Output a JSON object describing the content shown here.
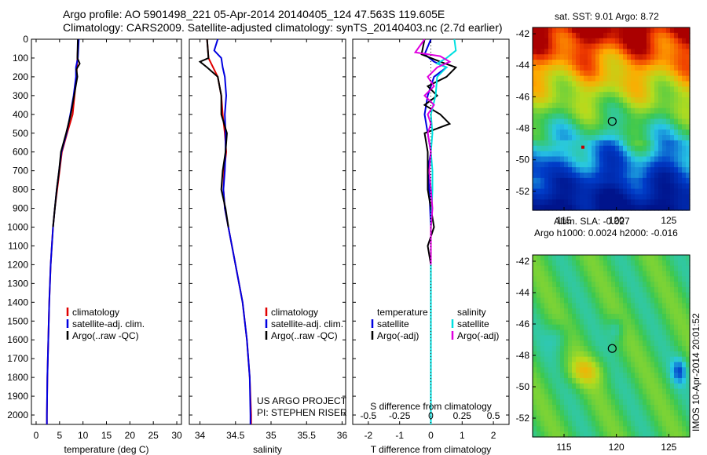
{
  "header": {
    "line1": "Argo profile: AO 5901498_221 05-Apr-2014 20140405_124 47.563S 119.605E",
    "line2": "Climatology: CARS2009. Satellite-adjusted climatology: synTS_20140403.nc (2.7d earlier)"
  },
  "side_label": "IMOS 10-Apr-2014 20:01:52",
  "project_label": [
    "US ARGO PROJECT",
    "PI: STEPHEN RISER"
  ],
  "colors": {
    "climatology": "#e00000",
    "satellite": "#0000e0",
    "argo": "#000000",
    "sat_salinity": "#00e0e0",
    "argo_salinity": "#e000e0"
  },
  "chart_data": [
    {
      "type": "line",
      "xlabel": "temperature (deg C)",
      "ylabel": "",
      "xlim": [
        -1,
        31
      ],
      "ylim": [
        2050,
        0
      ],
      "xticks": [
        0,
        5,
        10,
        15,
        20,
        25,
        30
      ],
      "yticks": [
        0,
        100,
        200,
        300,
        400,
        500,
        600,
        700,
        800,
        900,
        1000,
        1100,
        1200,
        1300,
        1400,
        1500,
        1600,
        1700,
        1800,
        1900,
        2000
      ],
      "legend": [
        "climatology",
        "satellite-adj. clim.",
        "Argo(..raw -QC)"
      ],
      "legend_placement": "lower-center",
      "series": [
        {
          "role": "climatology",
          "depth": [
            0,
            100,
            200,
            300,
            400,
            500,
            600,
            700,
            800,
            900,
            1000,
            1200,
            1400,
            1600,
            1800,
            2000,
            2050
          ],
          "values": [
            9.0,
            8.8,
            8.6,
            8.2,
            7.8,
            6.6,
            5.5,
            5.0,
            4.5,
            4.0,
            3.6,
            3.1,
            2.8,
            2.6,
            2.4,
            2.3,
            2.3
          ]
        },
        {
          "role": "satellite",
          "depth": [
            0,
            100,
            150,
            200,
            300,
            400,
            500,
            600,
            700,
            800,
            900,
            1000,
            1200,
            1400,
            1600,
            1800,
            2000,
            2050
          ],
          "values": [
            9.1,
            8.9,
            8.5,
            8.5,
            8.0,
            7.3,
            6.5,
            5.4,
            4.9,
            4.4,
            4.0,
            3.6,
            3.1,
            2.8,
            2.6,
            2.4,
            2.3,
            2.3
          ]
        },
        {
          "role": "argo",
          "depth": [
            0,
            100,
            130,
            160,
            200,
            300,
            400,
            500,
            600,
            700,
            800,
            900,
            1000
          ],
          "values": [
            8.9,
            8.8,
            9.3,
            8.6,
            8.8,
            8.1,
            7.4,
            6.4,
            5.3,
            4.9,
            4.4,
            4.0,
            3.6
          ]
        }
      ]
    },
    {
      "type": "line",
      "xlabel": "salinity",
      "ylabel": "",
      "xlim": [
        33.85,
        36.05
      ],
      "ylim": [
        2050,
        0
      ],
      "xticks": [
        34,
        34.5,
        35,
        35.5,
        36
      ],
      "legend": [
        "climatology",
        "satellite-adj. clim.",
        "Argo(..raw -QC)"
      ],
      "legend_placement": "lower-right",
      "series": [
        {
          "role": "climatology",
          "depth": [
            0,
            100,
            200,
            300,
            400,
            500,
            600,
            700,
            800,
            900,
            1000,
            1200,
            1400,
            1600,
            1800,
            2000,
            2050
          ],
          "values": [
            34.1,
            34.12,
            34.25,
            34.3,
            34.32,
            34.35,
            34.37,
            34.34,
            34.33,
            34.35,
            34.4,
            34.5,
            34.6,
            34.66,
            34.7,
            34.72,
            34.72
          ]
        },
        {
          "role": "satellite",
          "depth": [
            0,
            60,
            100,
            150,
            200,
            300,
            400,
            500,
            600,
            700,
            800,
            900,
            1000,
            1200,
            1400,
            1600,
            1800,
            2000,
            2050
          ],
          "values": [
            34.25,
            34.2,
            34.3,
            34.32,
            34.35,
            34.37,
            34.35,
            34.36,
            34.36,
            34.35,
            34.33,
            34.35,
            34.4,
            34.5,
            34.6,
            34.66,
            34.7,
            34.71,
            34.71
          ]
        },
        {
          "role": "argo",
          "depth": [
            0,
            100,
            120,
            150,
            200,
            300,
            400,
            500,
            600,
            700,
            800,
            900,
            1000
          ],
          "values": [
            34.1,
            34.12,
            34.0,
            34.1,
            34.25,
            34.3,
            34.3,
            34.38,
            34.36,
            34.32,
            34.3,
            34.36,
            34.4
          ]
        }
      ]
    },
    {
      "type": "line",
      "xlabel": "T difference from climatology",
      "xlabel_top": "S difference from climatology",
      "xlim": [
        -2.5,
        2.5
      ],
      "ylim": [
        2050,
        0
      ],
      "xticks": [
        -2,
        -1,
        0,
        1,
        2
      ],
      "xticks_s": [
        "-0.5",
        "-0.25",
        "0",
        "0.25",
        "0.5"
      ],
      "legend_t_title": "temperature",
      "legend_s_title": "salinity",
      "legend": [
        "satellite",
        "Argo(-adj)",
        "satellite",
        "Argo(-adj)"
      ],
      "legend_placement": "lower-center",
      "series": [
        {
          "role": "t_satellite",
          "depth": [
            0,
            80,
            120,
            150,
            200,
            300,
            400,
            500,
            600,
            700,
            800,
            1000,
            1200,
            2050
          ],
          "values": [
            0.0,
            -0.2,
            0.1,
            0.5,
            0.1,
            -0.1,
            -0.2,
            -0.1,
            0.0,
            -0.1,
            -0.05,
            0.0,
            0.0,
            0.0
          ]
        },
        {
          "role": "t_argo",
          "depth": [
            0,
            80,
            120,
            150,
            200,
            250,
            300,
            350,
            400,
            450,
            500,
            600,
            700,
            800,
            900,
            1000,
            1100,
            1200
          ],
          "values": [
            -0.2,
            -0.3,
            0.3,
            0.8,
            0.5,
            -0.1,
            0.2,
            -0.2,
            0.3,
            0.6,
            -0.2,
            -0.1,
            -0.1,
            -0.1,
            0.0,
            0.1,
            -0.1,
            0.0
          ]
        },
        {
          "role": "s_satellite",
          "depth": [
            0,
            60,
            80,
            100,
            130,
            150,
            200,
            300,
            400,
            500,
            600,
            700,
            800,
            1000,
            1200,
            1600,
            2050
          ],
          "values": [
            0.75,
            0.8,
            0.65,
            0.5,
            0.2,
            0.5,
            0.2,
            0.15,
            0.0,
            0.05,
            0.0,
            0.05,
            0.05,
            0.0,
            0.0,
            0.0,
            0.0
          ]
        },
        {
          "role": "s_argo",
          "depth": [
            0,
            70,
            90,
            120,
            150,
            200,
            250,
            300,
            350,
            400,
            450,
            500,
            600,
            700,
            800,
            900,
            1000,
            1100,
            1200
          ],
          "values": [
            -0.2,
            -0.5,
            0.3,
            0.6,
            0.2,
            -0.1,
            0.1,
            -0.2,
            0.1,
            -0.1,
            0.0,
            -0.1,
            0.0,
            -0.05,
            0.0,
            0.05,
            0.0,
            0.0,
            0.0
          ]
        }
      ]
    },
    {
      "type": "heatmap",
      "title": "sat. SST: 9.01  Argo: 8.72",
      "xlim": [
        112,
        127
      ],
      "ylim": [
        -53.2,
        -41.6
      ],
      "xticks": [
        115,
        120,
        125
      ],
      "yticks": [
        -42,
        -44,
        -46,
        -48,
        -50,
        -52
      ],
      "argo_position": {
        "lon": 119.6,
        "lat": -47.56
      },
      "extra_marker": {
        "lon": 116.8,
        "lat": -49.2
      }
    },
    {
      "type": "heatmap",
      "title": "Altim. SLA: -0.027",
      "subtitle": "Argo h1000: 0.0024 h2000: -0.016",
      "xlim": [
        112,
        127
      ],
      "ylim": [
        -53.2,
        -41.6
      ],
      "xticks": [
        115,
        120,
        125
      ],
      "yticks": [
        -42,
        -44,
        -46,
        -48,
        -50,
        -52
      ],
      "argo_position": {
        "lon": 119.6,
        "lat": -47.56
      }
    }
  ]
}
